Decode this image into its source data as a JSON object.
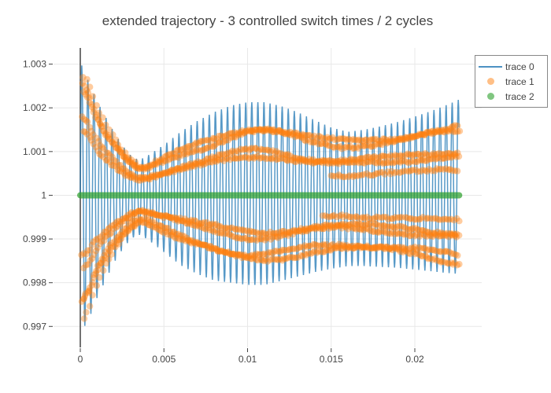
{
  "figure": {
    "title": "extended trajectory - 3 controlled switch times / 2 cycles"
  },
  "legend": {
    "items": [
      {
        "label": "trace 0",
        "type": "line",
        "color": "#1f77b4",
        "opacity": 0.8
      },
      {
        "label": "trace 1",
        "type": "marker",
        "color": "#ff7f0e",
        "opacity": 0.5
      },
      {
        "label": "trace 2",
        "type": "marker",
        "color": "#2ca02c",
        "opacity": 0.6
      }
    ]
  },
  "chart_data": {
    "type": "line",
    "title": "extended trajectory - 3 controlled switch times / 2 cycles",
    "xlabel": "",
    "ylabel": "",
    "grid": "on",
    "legend_position": "top-right",
    "x_axis": {
      "range": [
        -0.0016,
        0.024
      ],
      "ticks": [
        {
          "value": 0,
          "label": "0"
        },
        {
          "value": 0.005,
          "label": "0.005"
        },
        {
          "value": 0.01,
          "label": "0.01"
        },
        {
          "value": 0.015,
          "label": "0.015"
        },
        {
          "value": 0.02,
          "label": "0.02"
        }
      ]
    },
    "y_axis": {
      "range": [
        0.99652,
        1.00337
      ],
      "ticks": [
        {
          "value": 1.003,
          "label": "1.003"
        },
        {
          "value": 1.002,
          "label": "1.002"
        },
        {
          "value": 1.001,
          "label": "1.001"
        },
        {
          "value": 1,
          "label": "1"
        },
        {
          "value": 0.999,
          "label": "0.999"
        },
        {
          "value": 0.998,
          "label": "0.998"
        },
        {
          "value": 0.997,
          "label": "0.997"
        }
      ]
    },
    "style": {
      "grid_color": "#e8e8e8",
      "zeroline_color": "#444444",
      "tick_color": "#444444",
      "label_color": "#444444",
      "bg": "#ffffff"
    },
    "series": [
      {
        "name": "trace 0",
        "type": "line",
        "color": "#1f77b4",
        "opacity": 0.75,
        "width": 1.5,
        "model": "fast oscillation y(t)=1+A(t)*sin(2*pi*t/period); A follows upper/lower envelopes",
        "period": 0.000363,
        "t_start": 0,
        "t_end": 0.02265,
        "upper_envelope": [
          [
            0,
            0.00305
          ],
          [
            0.0005,
            0.0026
          ],
          [
            0.001,
            0.00215
          ],
          [
            0.0015,
            0.0018
          ],
          [
            0.002,
            0.00145
          ],
          [
            0.0025,
            0.00115
          ],
          [
            0.003,
            0.00092
          ],
          [
            0.0035,
            0.0008
          ],
          [
            0.004,
            0.0009
          ],
          [
            0.005,
            0.00115
          ],
          [
            0.006,
            0.00145
          ],
          [
            0.007,
            0.0017
          ],
          [
            0.008,
            0.0019
          ],
          [
            0.009,
            0.00205
          ],
          [
            0.01,
            0.00213
          ],
          [
            0.011,
            0.00213
          ],
          [
            0.012,
            0.00204
          ],
          [
            0.013,
            0.0019
          ],
          [
            0.014,
            0.00172
          ],
          [
            0.015,
            0.00155
          ],
          [
            0.016,
            0.00145
          ],
          [
            0.017,
            0.0015
          ],
          [
            0.018,
            0.00158
          ],
          [
            0.019,
            0.00168
          ],
          [
            0.02,
            0.0018
          ],
          [
            0.021,
            0.00193
          ],
          [
            0.022,
            0.00208
          ],
          [
            0.0227,
            0.0022
          ]
        ],
        "lower_envelope": [
          [
            0,
            0.00315
          ],
          [
            0.0005,
            0.00285
          ],
          [
            0.001,
            0.00235
          ],
          [
            0.0015,
            0.00195
          ],
          [
            0.002,
            0.00155
          ],
          [
            0.0025,
            0.00125
          ],
          [
            0.003,
            0.001
          ],
          [
            0.0035,
            0.0009
          ],
          [
            0.004,
            0.001
          ],
          [
            0.005,
            0.0013
          ],
          [
            0.006,
            0.0016
          ],
          [
            0.007,
            0.0018
          ],
          [
            0.008,
            0.00195
          ],
          [
            0.009,
            0.002
          ],
          [
            0.01,
            0.00205
          ],
          [
            0.011,
            0.00205
          ],
          [
            0.012,
            0.00196
          ],
          [
            0.013,
            0.00186
          ],
          [
            0.014,
            0.00176
          ],
          [
            0.015,
            0.00168
          ],
          [
            0.016,
            0.00162
          ],
          [
            0.017,
            0.00162
          ],
          [
            0.018,
            0.00164
          ],
          [
            0.019,
            0.00166
          ],
          [
            0.02,
            0.0017
          ],
          [
            0.021,
            0.00174
          ],
          [
            0.022,
            0.00178
          ],
          [
            0.0227,
            0.0018
          ]
        ]
      },
      {
        "name": "trace 1",
        "type": "scatter",
        "color": "#ff7f0e",
        "opacity": 0.4,
        "marker_radius": 4.2,
        "model": "marker strands y=1+m*C(t); C is band envelope; bands pinch near t=0.0035",
        "band_envelope": [
          [
            0,
            0.0027
          ],
          [
            0.0005,
            0.0024
          ],
          [
            0.001,
            0.00185
          ],
          [
            0.0015,
            0.0015
          ],
          [
            0.002,
            0.00122
          ],
          [
            0.0025,
            0.00095
          ],
          [
            0.003,
            0.00075
          ],
          [
            0.0035,
            0.00062
          ],
          [
            0.004,
            0.00065
          ],
          [
            0.005,
            0.00082
          ],
          [
            0.006,
            0.001
          ],
          [
            0.007,
            0.00115
          ],
          [
            0.008,
            0.0013
          ],
          [
            0.009,
            0.00145
          ],
          [
            0.01,
            0.00155
          ],
          [
            0.011,
            0.00156
          ],
          [
            0.012,
            0.00149
          ],
          [
            0.013,
            0.00138
          ],
          [
            0.014,
            0.00128
          ],
          [
            0.0155,
            0.00122
          ],
          [
            0.017,
            0.00126
          ],
          [
            0.018,
            0.0013
          ],
          [
            0.019,
            0.00135
          ],
          [
            0.02,
            0.0014
          ],
          [
            0.021,
            0.00147
          ],
          [
            0.0226,
            0.00155
          ]
        ],
        "strands": [
          {
            "m": 1.05,
            "t0": 0.0002,
            "t1": 0.0034,
            "step": 0.00019
          },
          {
            "m": -1.05,
            "t0": 0.0002,
            "t1": 0.0034,
            "step": 0.00019
          },
          {
            "m": 1.0,
            "t0": 0.0001,
            "t1": 0.02265,
            "step": 0.00012
          },
          {
            "m": 0.93,
            "t0": 0.0002,
            "t1": 0.02265,
            "step": 0.00012
          },
          {
            "m": 0.65,
            "t0": 0.0001,
            "t1": 0.02265,
            "step": 0.00012
          },
          {
            "m": 0.58,
            "t0": 0.0002,
            "t1": 0.02265,
            "step": 0.00012
          },
          {
            "m": -0.55,
            "t0": 0.0001,
            "t1": 0.02265,
            "step": 0.00012
          },
          {
            "m": -0.62,
            "t0": 0.0002,
            "t1": 0.02265,
            "step": 0.00012
          },
          {
            "m": -0.9,
            "t0": 0.0001,
            "t1": 0.02265,
            "step": 0.00012
          },
          {
            "m": -0.97,
            "t0": 0.0002,
            "t1": 0.02265,
            "step": 0.00012
          },
          {
            "m": 0.38,
            "t0": 0.015,
            "t1": 0.02265,
            "step": 0.00014
          },
          {
            "m": -0.38,
            "t0": 0.0145,
            "t1": 0.02265,
            "step": 0.00014
          }
        ]
      },
      {
        "name": "trace 2",
        "type": "line",
        "color": "#2ca02c",
        "opacity": 0.72,
        "width": 8,
        "y": 1,
        "t_start": 0,
        "t_end": 0.02265
      }
    ]
  }
}
